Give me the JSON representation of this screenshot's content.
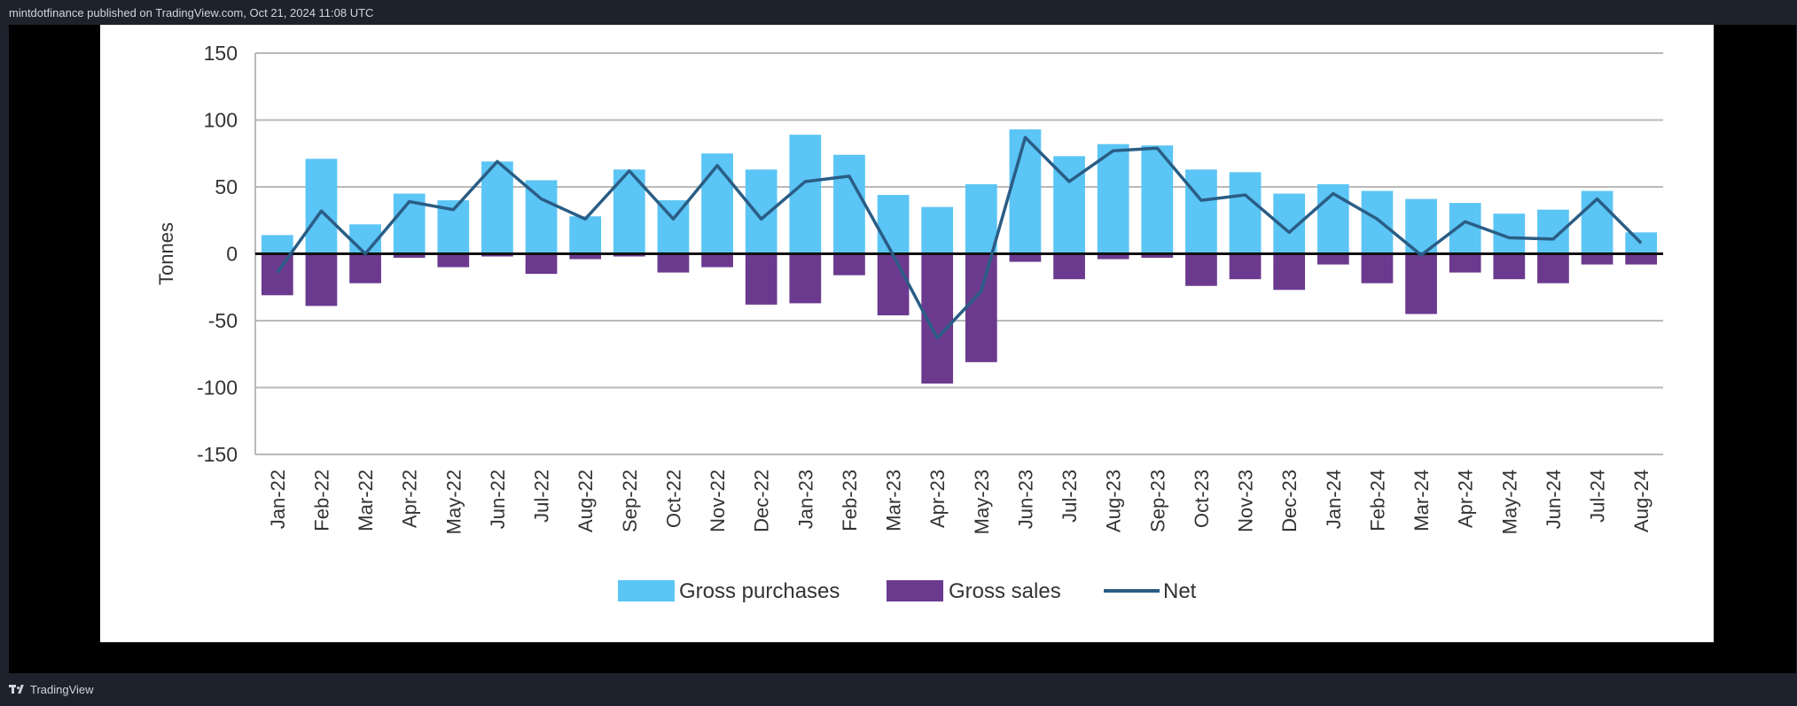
{
  "header": {
    "publish_line": "mintdotfinance published on TradingView.com, Oct 21, 2024 11:08 UTC"
  },
  "footer": {
    "brand": "TradingView",
    "logo_icon": "tradingview-logo-icon"
  },
  "colors": {
    "purchases": "#5bc5f5",
    "sales": "#6b3a8e",
    "net": "#2a5d85",
    "grid": "#b9b9b9",
    "axis": "#333333"
  },
  "chart_data": {
    "type": "bar",
    "ylabel": "Tonnes",
    "ylim": [
      -150,
      150
    ],
    "yticks": [
      150,
      100,
      50,
      0,
      -50,
      -100,
      -150
    ],
    "grid": true,
    "legend_position": "bottom",
    "categories": [
      "Jan-22",
      "Feb-22",
      "Mar-22",
      "Apr-22",
      "May-22",
      "Jun-22",
      "Jul-22",
      "Aug-22",
      "Sep-22",
      "Oct-22",
      "Nov-22",
      "Dec-22",
      "Jan-23",
      "Feb-23",
      "Mar-23",
      "Apr-23",
      "May-23",
      "Jun-23",
      "Jul-23",
      "Aug-23",
      "Sep-23",
      "Oct-23",
      "Nov-23",
      "Dec-23",
      "Jan-24",
      "Feb-24",
      "Mar-24",
      "Apr-24",
      "May-24",
      "Jun-24",
      "Jul-24",
      "Aug-24"
    ],
    "series": [
      {
        "name": "Gross purchases",
        "type": "bar",
        "values": [
          14,
          71,
          22,
          45,
          40,
          69,
          55,
          28,
          63,
          40,
          75,
          63,
          89,
          74,
          44,
          35,
          52,
          93,
          73,
          82,
          81,
          63,
          61,
          45,
          52,
          47,
          41,
          38,
          30,
          33,
          47,
          16
        ]
      },
      {
        "name": "Gross sales",
        "type": "bar",
        "values": [
          -31,
          -39,
          -22,
          -3,
          -10,
          -2,
          -15,
          -4,
          -2,
          -14,
          -10,
          -38,
          -37,
          -16,
          -46,
          -97,
          -81,
          -6,
          -19,
          -4,
          -3,
          -24,
          -19,
          -27,
          -8,
          -22,
          -45,
          -14,
          -19,
          -22,
          -8,
          -8
        ]
      },
      {
        "name": "Net",
        "type": "line",
        "values": [
          -14,
          32,
          0,
          39,
          33,
          69,
          41,
          26,
          62,
          26,
          66,
          26,
          54,
          58,
          -1,
          -63,
          -28,
          87,
          54,
          77,
          79,
          40,
          44,
          16,
          45,
          26,
          -1,
          24,
          12,
          11,
          41,
          8
        ]
      }
    ]
  }
}
